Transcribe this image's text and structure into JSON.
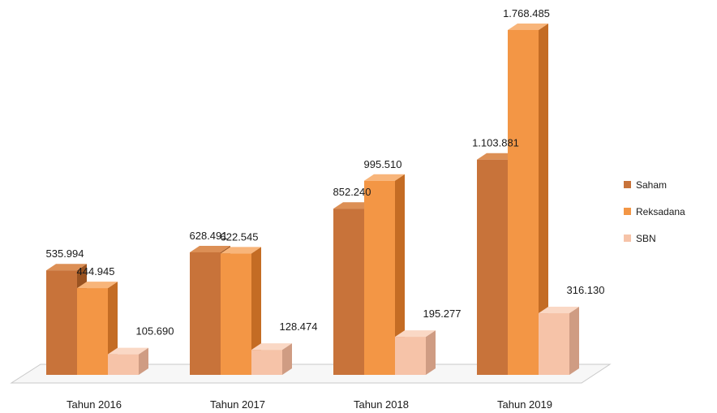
{
  "chart_data": {
    "type": "bar",
    "style": "3d-clustered-column",
    "categories": [
      "Tahun 2016",
      "Tahun 2017",
      "Tahun 2018",
      "Tahun 2019"
    ],
    "series": [
      {
        "name": "Saham",
        "values": [
          535994,
          628491,
          852240,
          1103881
        ],
        "labels": [
          "535.994",
          "628.491",
          "852.240",
          "1.103.881"
        ]
      },
      {
        "name": "Reksadana",
        "values": [
          444945,
          622545,
          995510,
          1768485
        ],
        "labels": [
          "444.945",
          "622.545",
          "995.510",
          "1.768.485"
        ]
      },
      {
        "name": "SBN",
        "values": [
          105690,
          128474,
          195277,
          316130
        ],
        "labels": [
          "105.690",
          "128.474",
          "195.277",
          "316.130"
        ]
      }
    ],
    "ylim": [
      0,
      1768485
    ],
    "legend": "right",
    "grid": false,
    "colors": {
      "Saham": {
        "front": "#c8733a",
        "side": "#9a5321",
        "top": "#dc8f55"
      },
      "Reksadana": {
        "front": "#f39645",
        "side": "#c46c24",
        "top": "#f8b57a"
      },
      "SBN": {
        "front": "#f6c3a8",
        "side": "#cf9c83",
        "top": "#fad8c5"
      }
    },
    "floor_color": "#f7f7f7"
  }
}
